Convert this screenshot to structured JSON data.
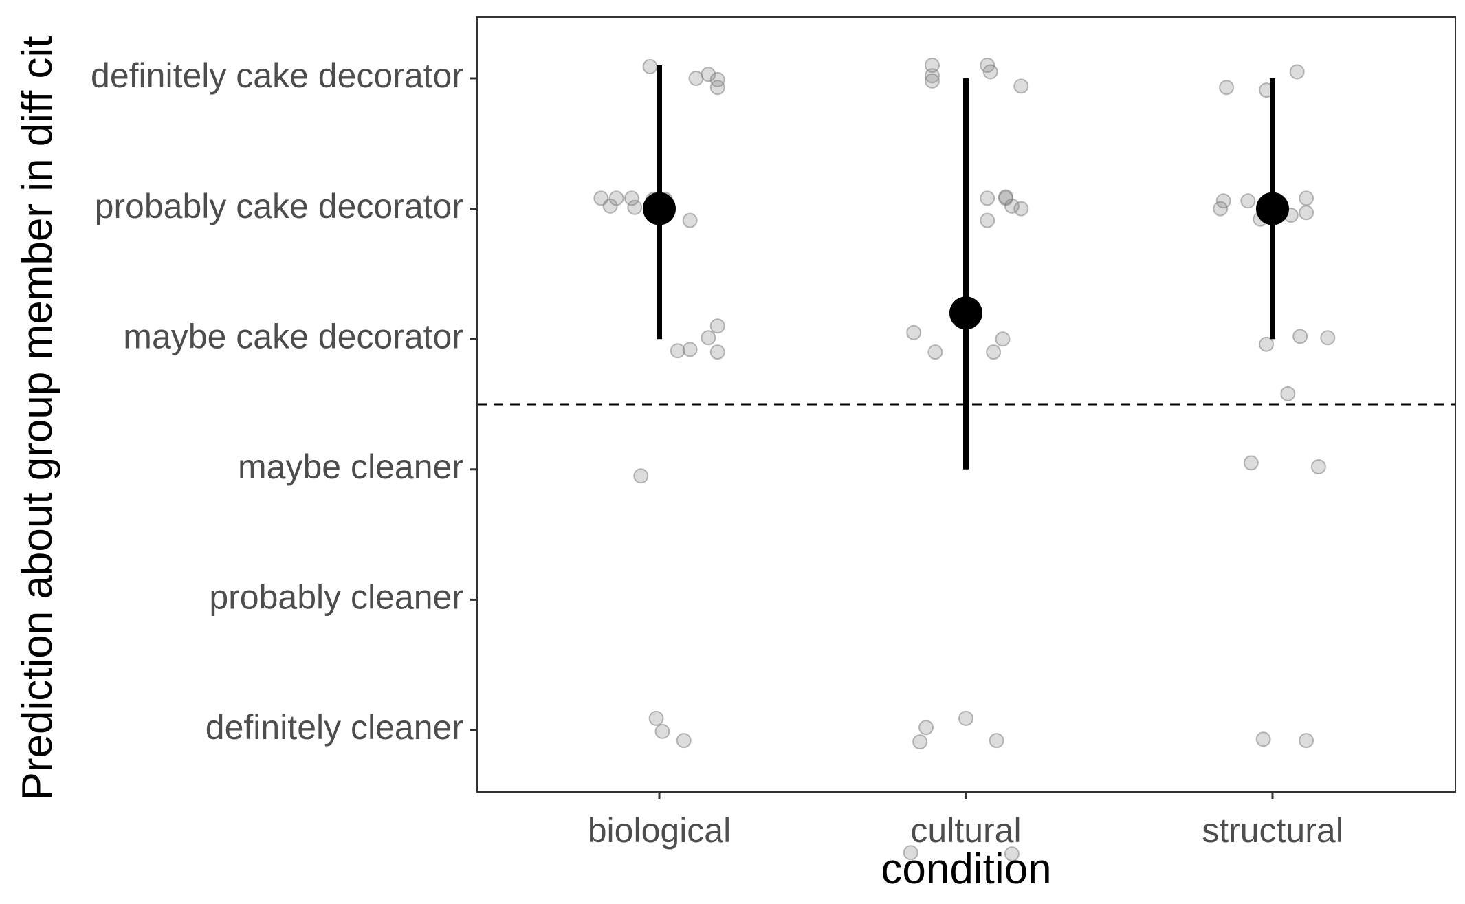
{
  "chart_data": {
    "type": "scatter",
    "xlabel": "condition",
    "ylabel": "Prediction about group member in diff cit",
    "categories": [
      "biological",
      "cultural",
      "structural"
    ],
    "y_levels": [
      "definitely cleaner",
      "probably cleaner",
      "maybe cleaner",
      "maybe cake decorator",
      "probably cake decorator",
      "definitely cake decorator"
    ],
    "ylim": [
      0.5,
      6.5
    ],
    "reference_line": {
      "y": 3.5,
      "style": "dashed"
    },
    "grid": false,
    "legend": "none",
    "colors": {
      "points": "#808080",
      "summary": "#000000",
      "panel_border": "#333333"
    },
    "summary": [
      {
        "category": "biological",
        "mean": 5.0,
        "lower": 4.0,
        "upper": 6.1
      },
      {
        "category": "cultural",
        "mean": 4.2,
        "lower": 3.0,
        "upper": 6.0
      },
      {
        "category": "structural",
        "mean": 5.0,
        "lower": 4.0,
        "upper": 6.0
      }
    ],
    "raw_points": [
      {
        "category": "biological",
        "x": 0.97,
        "y": 6.09
      },
      {
        "category": "biological",
        "x": 1.12,
        "y": 6.0
      },
      {
        "category": "biological",
        "x": 1.16,
        "y": 6.03
      },
      {
        "category": "biological",
        "x": 1.19,
        "y": 5.99
      },
      {
        "category": "biological",
        "x": 1.19,
        "y": 5.93
      },
      {
        "category": "biological",
        "x": 0.81,
        "y": 5.08
      },
      {
        "category": "biological",
        "x": 0.84,
        "y": 5.02
      },
      {
        "category": "biological",
        "x": 0.86,
        "y": 5.08
      },
      {
        "category": "biological",
        "x": 0.91,
        "y": 5.08
      },
      {
        "category": "biological",
        "x": 0.92,
        "y": 5.01
      },
      {
        "category": "biological",
        "x": 0.98,
        "y": 5.07
      },
      {
        "category": "biological",
        "x": 1.02,
        "y": 5.07
      },
      {
        "category": "biological",
        "x": 1.1,
        "y": 4.91
      },
      {
        "category": "biological",
        "x": 1.19,
        "y": 4.1
      },
      {
        "category": "biological",
        "x": 1.16,
        "y": 4.01
      },
      {
        "category": "biological",
        "x": 1.06,
        "y": 3.91
      },
      {
        "category": "biological",
        "x": 1.1,
        "y": 3.92
      },
      {
        "category": "biological",
        "x": 1.19,
        "y": 3.9
      },
      {
        "category": "biological",
        "x": 0.94,
        "y": 2.95
      },
      {
        "category": "biological",
        "x": 0.99,
        "y": 1.09
      },
      {
        "category": "biological",
        "x": 1.01,
        "y": 0.99
      },
      {
        "category": "biological",
        "x": 1.08,
        "y": 0.92
      },
      {
        "category": "cultural",
        "x": 1.89,
        "y": 6.1
      },
      {
        "category": "cultural",
        "x": 1.89,
        "y": 6.02
      },
      {
        "category": "cultural",
        "x": 1.89,
        "y": 5.98
      },
      {
        "category": "cultural",
        "x": 2.07,
        "y": 6.1
      },
      {
        "category": "cultural",
        "x": 2.08,
        "y": 6.05
      },
      {
        "category": "cultural",
        "x": 2.18,
        "y": 5.94
      },
      {
        "category": "cultural",
        "x": 2.07,
        "y": 5.08
      },
      {
        "category": "cultural",
        "x": 2.13,
        "y": 5.09
      },
      {
        "category": "cultural",
        "x": 2.13,
        "y": 5.08
      },
      {
        "category": "cultural",
        "x": 2.15,
        "y": 5.02
      },
      {
        "category": "cultural",
        "x": 2.18,
        "y": 5.0
      },
      {
        "category": "cultural",
        "x": 2.07,
        "y": 4.91
      },
      {
        "category": "cultural",
        "x": 1.83,
        "y": 4.05
      },
      {
        "category": "cultural",
        "x": 1.9,
        "y": 3.9
      },
      {
        "category": "cultural",
        "x": 2.09,
        "y": 3.9
      },
      {
        "category": "cultural",
        "x": 2.12,
        "y": 4.0
      },
      {
        "category": "cultural",
        "x": 1.87,
        "y": 1.02
      },
      {
        "category": "cultural",
        "x": 1.85,
        "y": 0.91
      },
      {
        "category": "cultural",
        "x": 2.0,
        "y": 1.09
      },
      {
        "category": "cultural",
        "x": 2.1,
        "y": 0.92
      },
      {
        "category": "cultural",
        "x": 1.82,
        "y": 0.06
      },
      {
        "category": "cultural",
        "x": 2.15,
        "y": 0.05
      },
      {
        "category": "structural",
        "x": 2.85,
        "y": 5.93
      },
      {
        "category": "structural",
        "x": 2.98,
        "y": 5.91
      },
      {
        "category": "structural",
        "x": 3.08,
        "y": 6.05
      },
      {
        "category": "structural",
        "x": 2.83,
        "y": 5.0
      },
      {
        "category": "structural",
        "x": 2.84,
        "y": 5.06
      },
      {
        "category": "structural",
        "x": 2.92,
        "y": 5.06
      },
      {
        "category": "structural",
        "x": 2.96,
        "y": 4.92
      },
      {
        "category": "structural",
        "x": 2.99,
        "y": 4.95
      },
      {
        "category": "structural",
        "x": 2.99,
        "y": 5.06
      },
      {
        "category": "structural",
        "x": 3.06,
        "y": 4.95
      },
      {
        "category": "structural",
        "x": 3.11,
        "y": 4.97
      },
      {
        "category": "structural",
        "x": 3.11,
        "y": 5.08
      },
      {
        "category": "structural",
        "x": 2.98,
        "y": 3.96
      },
      {
        "category": "structural",
        "x": 3.09,
        "y": 4.02
      },
      {
        "category": "structural",
        "x": 3.18,
        "y": 4.01
      },
      {
        "category": "structural",
        "x": 3.05,
        "y": 3.58
      },
      {
        "category": "structural",
        "x": 2.93,
        "y": 3.05
      },
      {
        "category": "structural",
        "x": 3.15,
        "y": 3.02
      },
      {
        "category": "structural",
        "x": 2.97,
        "y": 0.93
      },
      {
        "category": "structural",
        "x": 3.11,
        "y": 0.92
      }
    ]
  }
}
